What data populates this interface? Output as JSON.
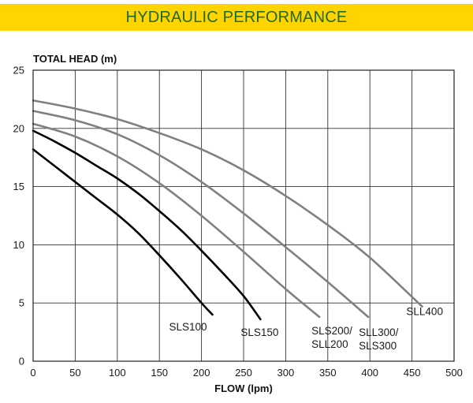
{
  "header": {
    "title": "HYDRAULIC PERFORMANCE",
    "background": "#FFD400",
    "text_color": "#1C6B2A"
  },
  "chart_data": {
    "type": "line",
    "title": "",
    "xlabel": "FLOW (lpm)",
    "ylabel": "TOTAL HEAD (m)",
    "xlim": [
      0,
      500
    ],
    "ylim": [
      0,
      25
    ],
    "x_ticks": [
      0,
      50,
      100,
      150,
      200,
      250,
      300,
      350,
      400,
      450,
      500
    ],
    "y_ticks": [
      0,
      5,
      10,
      15,
      20,
      25
    ],
    "grid": true,
    "series": [
      {
        "name": "SLS100",
        "label_lines": [
          "SLS100"
        ],
        "color": "#000000",
        "x": [
          0,
          25,
          50,
          75,
          100,
          125,
          150,
          175,
          200,
          213
        ],
        "y": [
          18.2,
          16.8,
          15.4,
          14.0,
          12.6,
          11.0,
          9.1,
          7.1,
          5.0,
          4.0
        ]
      },
      {
        "name": "SLS150",
        "label_lines": [
          "SLS150"
        ],
        "color": "#000000",
        "x": [
          0,
          25,
          50,
          75,
          100,
          125,
          150,
          175,
          200,
          225,
          250,
          270
        ],
        "y": [
          19.8,
          18.9,
          17.9,
          16.8,
          15.7,
          14.4,
          12.9,
          11.3,
          9.5,
          7.6,
          5.6,
          3.6
        ]
      },
      {
        "name": "SLS200/SLL200",
        "label_lines": [
          "SLS200/",
          "SLL200"
        ],
        "color": "#808080",
        "x": [
          0,
          50,
          100,
          150,
          200,
          250,
          300,
          340
        ],
        "y": [
          20.4,
          19.3,
          17.6,
          15.3,
          12.5,
          9.4,
          6.2,
          3.8
        ]
      },
      {
        "name": "SLL300/SLS300",
        "label_lines": [
          "SLL300/",
          "SLS300"
        ],
        "color": "#808080",
        "x": [
          0,
          50,
          100,
          150,
          200,
          250,
          300,
          350,
          398
        ],
        "y": [
          21.5,
          20.7,
          19.5,
          17.7,
          15.4,
          12.7,
          9.8,
          6.8,
          3.8
        ]
      },
      {
        "name": "SLL400",
        "label_lines": [
          "SLL400"
        ],
        "color": "#808080",
        "x": [
          0,
          50,
          100,
          150,
          200,
          250,
          300,
          350,
          400,
          462
        ],
        "y": [
          22.4,
          21.7,
          20.8,
          19.6,
          18.2,
          16.4,
          14.2,
          11.7,
          8.9,
          4.7
        ]
      }
    ]
  }
}
